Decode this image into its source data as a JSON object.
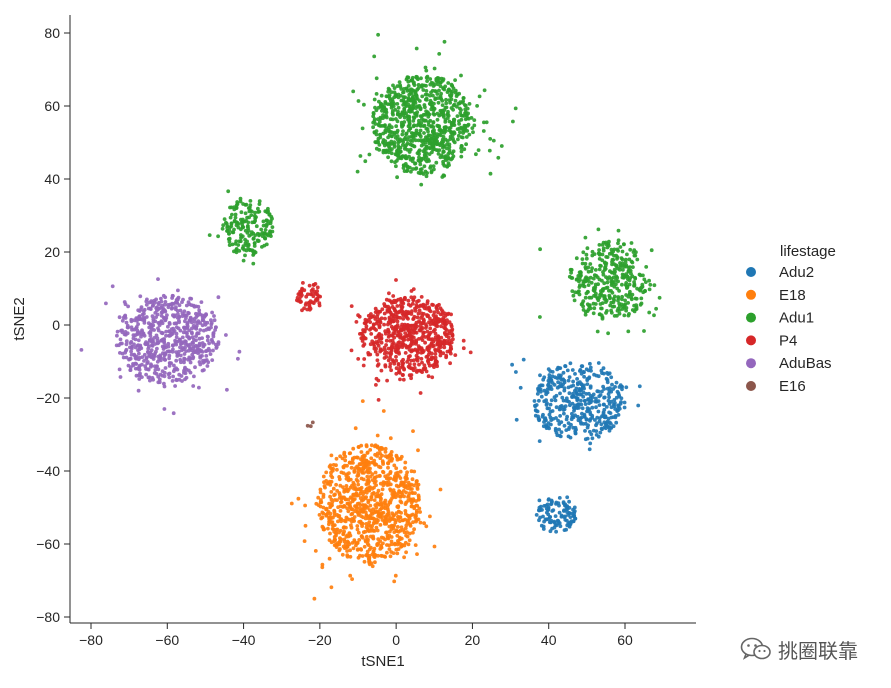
{
  "chart_data": {
    "type": "scatter",
    "xlabel": "tSNE1",
    "ylabel": "tSNE2",
    "xlim": [
      -85,
      78
    ],
    "ylim": [
      -82,
      85
    ],
    "xticks": [
      -80,
      -60,
      -40,
      -20,
      0,
      20,
      40,
      60
    ],
    "yticks": [
      -80,
      -60,
      -40,
      -20,
      0,
      20,
      40,
      60,
      80
    ],
    "grid": false,
    "legend": {
      "title": "lifestage",
      "placement": "right-center",
      "entries": [
        "Adu2",
        "E18",
        "Adu1",
        "P4",
        "AduBas",
        "E16"
      ]
    },
    "series": [
      {
        "name": "Adu2",
        "color": "#1f77b4",
        "clusters": [
          {
            "center": [
              48,
              -21
            ],
            "spread": [
              9,
              8
            ],
            "count": 420
          },
          {
            "center": [
              42,
              -52
            ],
            "spread": [
              4,
              3.5
            ],
            "count": 110
          }
        ]
      },
      {
        "name": "E18",
        "color": "#ff7f0e",
        "clusters": [
          {
            "center": [
              -7,
              -49
            ],
            "spread": [
              10,
              12
            ],
            "count": 900
          }
        ]
      },
      {
        "name": "Adu1",
        "color": "#2ca02c",
        "clusters": [
          {
            "center": [
              7,
              55
            ],
            "spread": [
              10,
              10
            ],
            "count": 850
          },
          {
            "center": [
              -39,
              27
            ],
            "spread": [
              5,
              6
            ],
            "count": 190
          },
          {
            "center": [
              56,
              12
            ],
            "spread": [
              8,
              8
            ],
            "count": 380
          }
        ]
      },
      {
        "name": "P4",
        "color": "#d62728",
        "clusters": [
          {
            "center": [
              3,
              -3
            ],
            "spread": [
              9,
              8
            ],
            "count": 650
          },
          {
            "center": [
              -23,
              8
            ],
            "spread": [
              2.5,
              3
            ],
            "count": 55
          }
        ]
      },
      {
        "name": "AduBas",
        "color": "#9467bd",
        "clusters": [
          {
            "center": [
              -60,
              -4
            ],
            "spread": [
              10,
              9
            ],
            "count": 650
          }
        ]
      },
      {
        "name": "E16",
        "color": "#8c564b",
        "clusters": [
          {
            "center": [
              -22,
              -27
            ],
            "spread": [
              1,
              1
            ],
            "count": 3
          }
        ]
      }
    ]
  },
  "watermark": {
    "text": "挑圈联靠",
    "icon": "wechat-icon"
  }
}
